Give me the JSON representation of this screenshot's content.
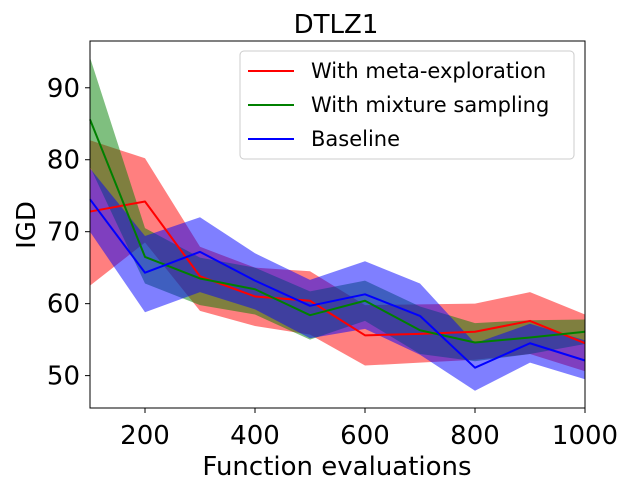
{
  "chart_data": {
    "type": "line",
    "title": "DTLZ1",
    "xlabel": "Function evaluations",
    "ylabel": "IGD",
    "xlim": [
      100,
      1000
    ],
    "ylim": [
      45.5,
      96.5
    ],
    "xticks": [
      200,
      400,
      600,
      800,
      1000
    ],
    "yticks": [
      50,
      60,
      70,
      80,
      90
    ],
    "xtick_labels": [
      "200",
      "400",
      "600",
      "800",
      "1000"
    ],
    "ytick_labels": [
      "50",
      "60",
      "70",
      "80",
      "90"
    ],
    "grid": false,
    "legend_position": "top-right",
    "x": [
      100,
      200,
      300,
      400,
      500,
      600,
      700,
      800,
      900,
      1000
    ],
    "series": [
      {
        "name": "With meta-exploration",
        "color": "#ff0000",
        "values": [
          72.8,
          74.2,
          63.8,
          61.0,
          60.4,
          55.6,
          55.8,
          56.1,
          57.6,
          54.5
        ],
        "lower": [
          62.5,
          68.5,
          59.0,
          56.9,
          55.7,
          51.4,
          51.8,
          52.2,
          53.0,
          50.6
        ],
        "upper": [
          82.7,
          80.2,
          67.9,
          65.0,
          64.5,
          59.8,
          59.9,
          60.0,
          61.6,
          58.5
        ]
      },
      {
        "name": "With mixture sampling",
        "color": "#008000",
        "values": [
          85.6,
          66.5,
          63.5,
          62.0,
          58.4,
          60.4,
          56.3,
          54.6,
          55.3,
          56.1
        ],
        "lower": [
          79.0,
          62.8,
          59.8,
          58.5,
          55.0,
          57.6,
          53.0,
          52.0,
          53.0,
          54.4
        ],
        "upper": [
          94.2,
          70.5,
          66.4,
          65.0,
          61.7,
          63.2,
          59.6,
          57.3,
          57.7,
          57.8
        ]
      },
      {
        "name": "Baseline",
        "color": "#0000ff",
        "values": [
          74.5,
          64.3,
          67.2,
          63.2,
          59.7,
          61.3,
          58.3,
          51.1,
          54.5,
          52.1
        ],
        "lower": [
          70.0,
          58.8,
          61.6,
          59.2,
          55.2,
          56.5,
          52.9,
          47.9,
          51.8,
          49.5
        ],
        "upper": [
          78.8,
          69.4,
          72.0,
          67.0,
          63.3,
          65.9,
          62.8,
          54.5,
          57.2,
          54.9
        ]
      }
    ]
  }
}
